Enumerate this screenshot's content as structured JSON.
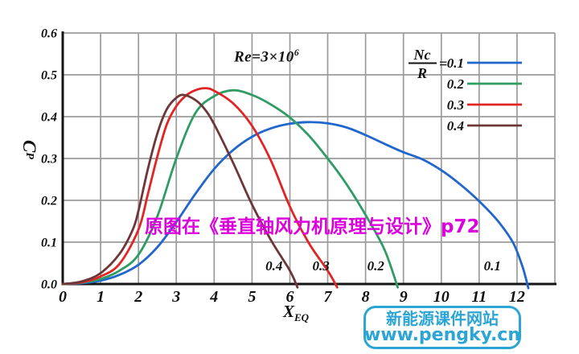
{
  "page": {
    "background": "#ffffff"
  },
  "chart_data": {
    "type": "line",
    "title": "",
    "annotation_re": {
      "main": "Re=3×10",
      "sup": "6"
    },
    "xlabel": {
      "main": "X",
      "sub": "EQ"
    },
    "ylabel": {
      "main": "C",
      "sub": "P"
    },
    "xlim": [
      0,
      13
    ],
    "ylim": [
      0,
      0.6
    ],
    "x_ticks": [
      "0",
      "1",
      "2",
      "3",
      "4",
      "5",
      "6",
      "7",
      "8",
      "9",
      "10",
      "11",
      "12"
    ],
    "y_ticks": [
      "0.0",
      "0.1",
      "0.2",
      "0.3",
      "0.4",
      "0.5",
      "0.6"
    ],
    "grid": true,
    "grid_color": "#9b9b9b",
    "axis_color": "#141414",
    "legend": {
      "fraction_numerator": "Nc",
      "fraction_denominator": "R",
      "equals_sign": "=",
      "position": "top-right",
      "entries": [
        "0.1",
        "0.2",
        "0.3",
        "0.4"
      ]
    },
    "series": [
      {
        "name": "Nc/R = 0.1",
        "label": "0.1",
        "color": "#2166cc",
        "end_label": {
          "text": "0.1",
          "x": 11.35,
          "y": 0.042
        },
        "points": [
          [
            0,
            0
          ],
          [
            0.5,
            0.002
          ],
          [
            1,
            0.008
          ],
          [
            1.5,
            0.022
          ],
          [
            2,
            0.046
          ],
          [
            2.5,
            0.088
          ],
          [
            3,
            0.148
          ],
          [
            3.5,
            0.215
          ],
          [
            4,
            0.275
          ],
          [
            4.5,
            0.32
          ],
          [
            5,
            0.352
          ],
          [
            5.5,
            0.372
          ],
          [
            6,
            0.383
          ],
          [
            6.5,
            0.387
          ],
          [
            7,
            0.384
          ],
          [
            7.5,
            0.374
          ],
          [
            8,
            0.356
          ],
          [
            8.5,
            0.335
          ],
          [
            9,
            0.315
          ],
          [
            9.5,
            0.298
          ],
          [
            10,
            0.272
          ],
          [
            10.5,
            0.238
          ],
          [
            11,
            0.198
          ],
          [
            11.5,
            0.15
          ],
          [
            11.9,
            0.098
          ],
          [
            12.15,
            0.04
          ],
          [
            12.3,
            -0.01
          ]
        ]
      },
      {
        "name": "Nc/R = 0.2",
        "label": "0.2",
        "color": "#2f9c64",
        "end_label": {
          "text": "0.2",
          "x": 8.27,
          "y": 0.042
        },
        "points": [
          [
            0,
            0
          ],
          [
            0.5,
            0.003
          ],
          [
            1,
            0.012
          ],
          [
            1.5,
            0.032
          ],
          [
            2,
            0.07
          ],
          [
            2.5,
            0.162
          ],
          [
            3,
            0.3
          ],
          [
            3.5,
            0.408
          ],
          [
            4,
            0.449
          ],
          [
            4.5,
            0.463
          ],
          [
            5,
            0.452
          ],
          [
            5.5,
            0.429
          ],
          [
            6,
            0.398
          ],
          [
            6.5,
            0.355
          ],
          [
            7,
            0.3
          ],
          [
            7.5,
            0.238
          ],
          [
            8,
            0.165
          ],
          [
            8.5,
            0.082
          ],
          [
            8.85,
            -0.008
          ]
        ]
      },
      {
        "name": "Nc/R = 0.3",
        "label": "0.3",
        "color": "#e32424",
        "end_label": {
          "text": "0.3",
          "x": 6.82,
          "y": 0.042
        },
        "points": [
          [
            0,
            0
          ],
          [
            0.5,
            0.004
          ],
          [
            1,
            0.018
          ],
          [
            1.5,
            0.048
          ],
          [
            2,
            0.13
          ],
          [
            2.25,
            0.215
          ],
          [
            2.5,
            0.305
          ],
          [
            2.75,
            0.382
          ],
          [
            3,
            0.425
          ],
          [
            3.25,
            0.45
          ],
          [
            3.5,
            0.463
          ],
          [
            3.75,
            0.468
          ],
          [
            4,
            0.462
          ],
          [
            4.5,
            0.432
          ],
          [
            5,
            0.378
          ],
          [
            5.5,
            0.295
          ],
          [
            6,
            0.185
          ],
          [
            6.5,
            0.098
          ],
          [
            7,
            0.032
          ],
          [
            7.25,
            -0.008
          ]
        ]
      },
      {
        "name": "Nc/R = 0.4",
        "label": "0.4",
        "color": "#6e3737",
        "end_label": {
          "text": "0.4",
          "x": 5.58,
          "y": 0.042
        },
        "points": [
          [
            0,
            0
          ],
          [
            0.5,
            0.006
          ],
          [
            1,
            0.026
          ],
          [
            1.5,
            0.072
          ],
          [
            1.85,
            0.13
          ],
          [
            2,
            0.175
          ],
          [
            2.25,
            0.275
          ],
          [
            2.5,
            0.36
          ],
          [
            2.75,
            0.418
          ],
          [
            3,
            0.445
          ],
          [
            3.2,
            0.452
          ],
          [
            3.5,
            0.44
          ],
          [
            3.75,
            0.418
          ],
          [
            4,
            0.382
          ],
          [
            4.5,
            0.29
          ],
          [
            5,
            0.19
          ],
          [
            5.5,
            0.105
          ],
          [
            6,
            0.032
          ],
          [
            6.2,
            -0.008
          ]
        ]
      }
    ]
  },
  "overlays": {
    "source_note": {
      "text": "原图在《垂直轴风力机原理与设计》p72",
      "color": "#DC00DC"
    },
    "watermark": {
      "line1": "新能源课件网站",
      "line2": "www.pengky.cn",
      "color": "#2CA5D5"
    }
  }
}
